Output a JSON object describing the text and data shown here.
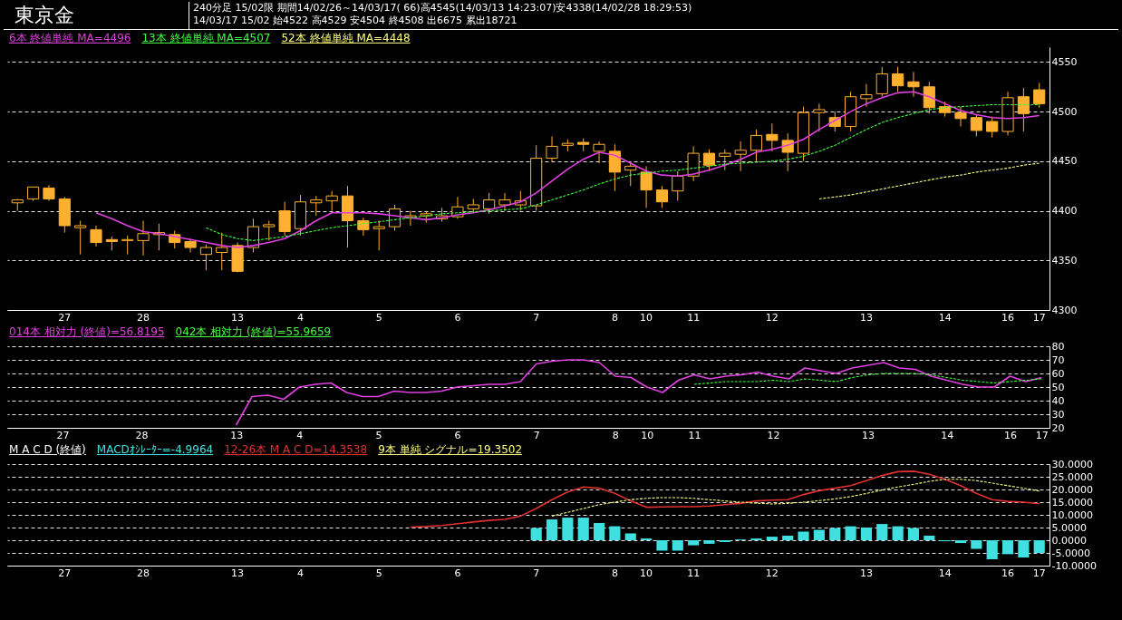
{
  "chart_data": [
    {
      "type": "candlestick",
      "title": "東京金",
      "subtitle": "240分足 15/02限 期間14/02/26～14/03/17( 66)高4545(14/03/13 14:23:07)安4338(14/02/28 18:29:53)",
      "annotations": [
        "14/03/17 15/02 始4522 高4529 安4504 終4508 出6675 累出18721"
      ],
      "categories": [
        null,
        null,
        null,
        "27",
        null,
        null,
        null,
        null,
        "28",
        null,
        null,
        null,
        null,
        null,
        "13",
        null,
        null,
        null,
        "4",
        null,
        null,
        null,
        null,
        "5",
        null,
        null,
        null,
        null,
        "6",
        null,
        null,
        null,
        null,
        "7",
        null,
        null,
        null,
        null,
        "8",
        null,
        "10",
        null,
        null,
        "11",
        null,
        null,
        null,
        null,
        "12",
        null,
        null,
        null,
        null,
        null,
        "13",
        null,
        null,
        null,
        null,
        "14",
        null,
        null,
        null,
        "16",
        null,
        "17"
      ],
      "color": "#ffb030",
      "ohlc": [
        [
          4408,
          4412,
          4400,
          4411
        ],
        [
          4412,
          4424,
          4410,
          4424
        ],
        [
          4423,
          4426,
          4410,
          4412
        ],
        [
          4412,
          4414,
          4378,
          4385
        ],
        [
          4383,
          4390,
          4356,
          4385
        ],
        [
          4381,
          4385,
          4364,
          4368
        ],
        [
          4371,
          4374,
          4360,
          4369
        ],
        [
          4370,
          4375,
          4356,
          4371
        ],
        [
          4370,
          4390,
          4355,
          4377
        ],
        [
          4376,
          4387,
          4360,
          4378
        ],
        [
          4376,
          4380,
          4362,
          4368
        ],
        [
          4369,
          4372,
          4358,
          4363
        ],
        [
          4356,
          4366,
          4340,
          4363
        ],
        [
          4358,
          4378,
          4340,
          4363
        ],
        [
          4365,
          4368,
          4338,
          4339
        ],
        [
          4363,
          4392,
          4358,
          4384
        ],
        [
          4384,
          4390,
          4370,
          4386
        ],
        [
          4400,
          4409,
          4375,
          4379
        ],
        [
          4382,
          4416,
          4375,
          4409
        ],
        [
          4408,
          4415,
          4395,
          4411
        ],
        [
          4410,
          4420,
          4400,
          4415
        ],
        [
          4415,
          4425,
          4363,
          4390
        ],
        [
          4390,
          4393,
          4375,
          4381
        ],
        [
          4382,
          4390,
          4360,
          4384
        ],
        [
          4384,
          4406,
          4380,
          4402
        ],
        [
          4393,
          4400,
          4385,
          4395
        ],
        [
          4395,
          4400,
          4388,
          4397
        ],
        [
          4392,
          4403,
          4389,
          4395
        ],
        [
          4394,
          4414,
          4392,
          4404
        ],
        [
          4402,
          4412,
          4398,
          4406
        ],
        [
          4402,
          4418,
          4397,
          4411
        ],
        [
          4406,
          4418,
          4400,
          4411
        ],
        [
          4406,
          4420,
          4400,
          4410
        ],
        [
          4405,
          4466,
          4400,
          4453
        ],
        [
          4453,
          4475,
          4450,
          4465
        ],
        [
          4466,
          4472,
          4460,
          4468
        ],
        [
          4469,
          4473,
          4460,
          4467
        ],
        [
          4460,
          4470,
          4448,
          4467
        ],
        [
          4460,
          4467,
          4420,
          4439
        ],
        [
          4441,
          4450,
          4425,
          4445
        ],
        [
          4439,
          4445,
          4403,
          4421
        ],
        [
          4421,
          4425,
          4403,
          4409
        ],
        [
          4420,
          4440,
          4410,
          4435
        ],
        [
          4435,
          4465,
          4430,
          4458
        ],
        [
          4458,
          4462,
          4440,
          4446
        ],
        [
          4455,
          4462,
          4441,
          4458
        ],
        [
          4457,
          4470,
          4440,
          4461
        ],
        [
          4461,
          4482,
          4450,
          4476
        ],
        [
          4477,
          4488,
          4460,
          4471
        ],
        [
          4471,
          4478,
          4440,
          4459
        ],
        [
          4458,
          4505,
          4450,
          4499
        ],
        [
          4499,
          4508,
          4480,
          4502
        ],
        [
          4494,
          4500,
          4480,
          4485
        ],
        [
          4485,
          4520,
          4480,
          4515
        ],
        [
          4513,
          4528,
          4505,
          4517
        ],
        [
          4518,
          4545,
          4515,
          4538
        ],
        [
          4538,
          4545,
          4520,
          4526
        ],
        [
          4530,
          4540,
          4515,
          4525
        ],
        [
          4525,
          4530,
          4498,
          4504
        ],
        [
          4505,
          4510,
          4495,
          4499
        ],
        [
          4499,
          4505,
          4485,
          4493
        ],
        [
          4494,
          4497,
          4475,
          4481
        ],
        [
          4490,
          4495,
          4474,
          4480
        ],
        [
          4480,
          4520,
          4476,
          4514
        ],
        [
          4515,
          4524,
          4480,
          4498
        ],
        [
          4522,
          4529,
          4504,
          4508
        ]
      ],
      "series": [
        {
          "name": "6本 終値単純 MA=4496",
          "type": "line",
          "color": "#e040e0",
          "line_style": "solid",
          "values": [
            null,
            null,
            null,
            null,
            null,
            4398,
            4392,
            4385,
            4379,
            4377,
            4374,
            4371,
            4368,
            4365,
            4363,
            4365,
            4368,
            4372,
            4380,
            4390,
            4398,
            4398,
            4398,
            4397,
            4395,
            4393,
            4391,
            4393,
            4396,
            4398,
            4401,
            4405,
            4409,
            4418,
            4430,
            4442,
            4452,
            4459,
            4456,
            4448,
            4440,
            4436,
            4435,
            4437,
            4441,
            4446,
            4452,
            4459,
            4462,
            4466,
            4472,
            4482,
            4491,
            4500,
            4508,
            4514,
            4519,
            4520,
            4515,
            4508,
            4501,
            4497,
            4494,
            4493,
            4494,
            4496
          ]
        },
        {
          "name": "13本 終値単純 MA=4507",
          "type": "line",
          "color": "#40ff40",
          "line_style": "dashed",
          "values": [
            null,
            null,
            null,
            null,
            null,
            null,
            null,
            null,
            null,
            null,
            null,
            null,
            4383,
            4376,
            4372,
            4370,
            4372,
            4374,
            4377,
            4380,
            4383,
            4385,
            4387,
            4389,
            4391,
            4393,
            4395,
            4397,
            4398,
            4399,
            4400,
            4401,
            4402,
            4406,
            4411,
            4416,
            4421,
            4427,
            4432,
            4436,
            4438,
            4440,
            4441,
            4443,
            4445,
            4447,
            4448,
            4449,
            4450,
            4452,
            4455,
            4460,
            4466,
            4474,
            4482,
            4489,
            4494,
            4498,
            4502,
            4504,
            4505,
            4506,
            4507,
            4507,
            4507,
            4507
          ]
        },
        {
          "name": "52本 終値単純 MA=4448",
          "type": "line",
          "color": "#ffff80",
          "line_style": "dashed",
          "values": [
            null,
            null,
            null,
            null,
            null,
            null,
            null,
            null,
            null,
            null,
            null,
            null,
            null,
            null,
            null,
            null,
            null,
            null,
            null,
            null,
            null,
            null,
            null,
            null,
            null,
            null,
            null,
            null,
            null,
            null,
            null,
            null,
            null,
            null,
            null,
            null,
            null,
            null,
            null,
            null,
            null,
            null,
            null,
            null,
            null,
            null,
            null,
            null,
            null,
            null,
            null,
            4412,
            4414,
            4416,
            4419,
            4422,
            4425,
            4428,
            4431,
            4434,
            4436,
            4439,
            4441,
            4443,
            4446,
            4448
          ]
        }
      ],
      "ylim": [
        4300,
        4565
      ],
      "yticks": [
        4300,
        4350,
        4400,
        4450,
        4500,
        4550
      ],
      "grid": "y",
      "legend": "top left"
    },
    {
      "type": "line",
      "categories": [
        null,
        null,
        null,
        "27",
        null,
        null,
        null,
        null,
        "28",
        null,
        null,
        null,
        null,
        null,
        "13",
        null,
        null,
        null,
        "4",
        null,
        null,
        null,
        null,
        "5",
        null,
        null,
        null,
        null,
        "6",
        null,
        null,
        null,
        null,
        "7",
        null,
        null,
        null,
        null,
        "8",
        null,
        "10",
        null,
        null,
        "11",
        null,
        null,
        null,
        null,
        "12",
        null,
        null,
        null,
        null,
        null,
        "13",
        null,
        null,
        null,
        null,
        "14",
        null,
        null,
        null,
        "16",
        null,
        "17"
      ],
      "series": [
        {
          "name": "014本 相対力 (終値)=56.8195",
          "color": "#e040e0",
          "line_style": "solid",
          "values": [
            null,
            null,
            null,
            null,
            null,
            null,
            null,
            null,
            null,
            null,
            null,
            null,
            null,
            null,
            22,
            43,
            44,
            41,
            50,
            52,
            53,
            46,
            43,
            43,
            47,
            46,
            46,
            47,
            50,
            51,
            52,
            52,
            54,
            67,
            69,
            70,
            70,
            68,
            58,
            57,
            50,
            46,
            55,
            59,
            56,
            58,
            59,
            61,
            58,
            56,
            64,
            62,
            60,
            64,
            66,
            68,
            64,
            63,
            58,
            55,
            52,
            50,
            50,
            58,
            54,
            57
          ]
        },
        {
          "name": "042本 相対力 (終値)=55.9659",
          "color": "#40ff40",
          "line_style": "dashed",
          "values": [
            null,
            null,
            null,
            null,
            null,
            null,
            null,
            null,
            null,
            null,
            null,
            null,
            null,
            null,
            null,
            null,
            null,
            null,
            null,
            null,
            null,
            null,
            null,
            null,
            null,
            null,
            null,
            null,
            null,
            null,
            null,
            null,
            null,
            null,
            null,
            null,
            null,
            null,
            null,
            null,
            null,
            null,
            null,
            52,
            53,
            54,
            54,
            54,
            55,
            54,
            56,
            55,
            54,
            57,
            59,
            60,
            60,
            60,
            59,
            57,
            55,
            54,
            53,
            54,
            55,
            56
          ]
        }
      ],
      "ylim": [
        20,
        80
      ],
      "yticks": [
        20,
        30,
        40,
        50,
        60,
        70,
        80
      ],
      "grid": "y",
      "legend": "top left"
    },
    {
      "type": "line",
      "title": "M A C D (終値)",
      "categories": [
        null,
        null,
        null,
        "27",
        null,
        null,
        null,
        null,
        "28",
        null,
        null,
        null,
        null,
        null,
        "13",
        null,
        null,
        null,
        "4",
        null,
        null,
        null,
        null,
        "5",
        null,
        null,
        null,
        null,
        "6",
        null,
        null,
        null,
        null,
        "7",
        null,
        null,
        null,
        null,
        "8",
        null,
        "10",
        null,
        null,
        "11",
        null,
        null,
        null,
        null,
        "12",
        null,
        null,
        null,
        null,
        null,
        "13",
        null,
        null,
        null,
        null,
        "14",
        null,
        null,
        null,
        "16",
        null,
        "17"
      ],
      "series": [
        {
          "name": "MACDｵｼﾚｰﾀｰ=-4.9964",
          "type": "bar",
          "color": "#40e0e0",
          "values": [
            null,
            null,
            null,
            null,
            null,
            null,
            null,
            null,
            null,
            null,
            null,
            null,
            null,
            null,
            null,
            null,
            null,
            null,
            null,
            null,
            null,
            null,
            null,
            null,
            null,
            null,
            null,
            null,
            null,
            null,
            null,
            null,
            null,
            4.8,
            8.2,
            8.9,
            8.9,
            6.8,
            5.5,
            2.7,
            0.7,
            -4.1,
            -4.1,
            -2,
            -1.4,
            -0.7,
            0.3,
            0.7,
            1.4,
            1.8,
            3.4,
            4.1,
            4.8,
            5.5,
            5,
            6.4,
            5.5,
            4.8,
            1.8,
            -0.4,
            -1.1,
            -3.4,
            -7.5,
            -5.5,
            -6.8,
            -5
          ]
        },
        {
          "name": "12-26本 M A C D=14.3538",
          "type": "line",
          "color": "#e03030",
          "line_style": "solid",
          "values": [
            null,
            null,
            null,
            null,
            null,
            null,
            null,
            null,
            null,
            null,
            null,
            null,
            null,
            null,
            null,
            null,
            null,
            null,
            null,
            null,
            null,
            null,
            null,
            null,
            null,
            5.2,
            5.4,
            5.8,
            6.5,
            7.2,
            7.8,
            8.2,
            9.5,
            12.5,
            16,
            19,
            21,
            20.5,
            18.5,
            15.5,
            13,
            13.1,
            13.2,
            13.2,
            13.5,
            14,
            14.5,
            15.5,
            15.8,
            16,
            18,
            19.5,
            20.5,
            21.5,
            23.5,
            25.5,
            27,
            27.2,
            26,
            24,
            21.5,
            18.5,
            16,
            15.3,
            15,
            14.4
          ]
        },
        {
          "name": "9本 単純 シグナル=19.3502",
          "type": "line",
          "color": "#ffff80",
          "line_style": "dashed",
          "values": [
            null,
            null,
            null,
            null,
            null,
            null,
            null,
            null,
            null,
            null,
            null,
            null,
            null,
            null,
            null,
            null,
            null,
            null,
            null,
            null,
            null,
            null,
            null,
            null,
            null,
            null,
            null,
            null,
            null,
            null,
            null,
            null,
            null,
            null,
            9.5,
            11,
            12.5,
            14,
            15,
            16,
            16.5,
            16.8,
            16.8,
            16.5,
            16,
            15.5,
            15,
            14.6,
            14.3,
            14.5,
            15,
            15.6,
            16.3,
            17.2,
            18.4,
            19.8,
            21,
            22,
            23.2,
            24,
            24,
            23.5,
            22.5,
            21.5,
            20.5,
            19.4
          ]
        }
      ],
      "ylim": [
        -10,
        30
      ],
      "yticks": [
        {
          "value": 30,
          "label": "30.0000"
        },
        {
          "value": 25,
          "label": "25.0000"
        },
        {
          "value": 20,
          "label": "20.0000"
        },
        {
          "value": 15,
          "label": "15.0000"
        },
        {
          "value": 10,
          "label": "10.0000"
        },
        {
          "value": 5,
          "label": "5.0000"
        },
        {
          "value": 0,
          "label": "0.0000"
        },
        {
          "value": -5,
          "label": "-5.0000"
        },
        {
          "value": -10,
          "label": "-10.0000"
        }
      ],
      "grid": "y",
      "legend": "top left"
    }
  ]
}
